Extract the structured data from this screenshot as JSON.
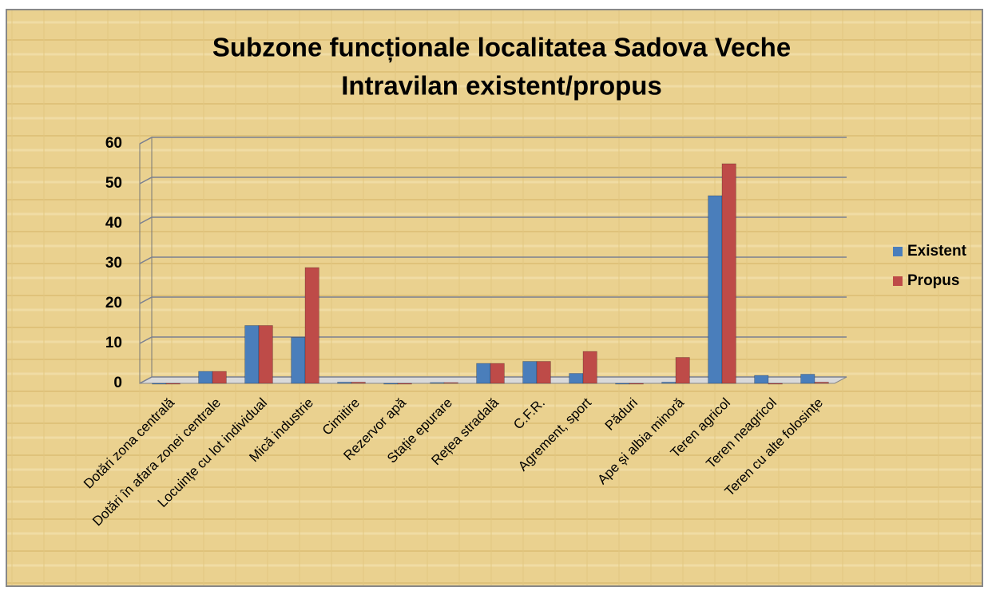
{
  "chart_data": {
    "type": "bar",
    "title": "Subzone funcționale localitatea Sadova Veche",
    "subtitle": "Intravilan existent/propus",
    "categories": [
      "Dotări zona centrală",
      "Dotări în afara zonei centrale",
      "Locuințe cu lot individual",
      "Mică industrie",
      "Cimitire",
      "Rezervor apă",
      "Stație epurare",
      "Rețea stradală",
      "C.F.R.",
      "Agrement, sport",
      "Păduri",
      "Ape și albia minoră",
      "Teren agricol",
      "Teren neagricol",
      "Teren cu alte folosințe"
    ],
    "series": [
      {
        "name": "Existent",
        "color": "#4a7ebb",
        "values": [
          0,
          3,
          14.5,
          11.5,
          0.3,
          0,
          0.2,
          5,
          5.5,
          2.5,
          0,
          0.3,
          47,
          2,
          2.3
        ]
      },
      {
        "name": "Propus",
        "color": "#be4b48",
        "values": [
          0,
          3,
          14.5,
          29,
          0.3,
          0,
          0.2,
          5,
          5.5,
          8,
          0,
          6.5,
          55,
          0,
          0.3
        ]
      }
    ],
    "ylim": [
      0,
      60
    ],
    "yticks": [
      0,
      10,
      20,
      30,
      40,
      50,
      60
    ],
    "grid": true,
    "legend": "right"
  }
}
